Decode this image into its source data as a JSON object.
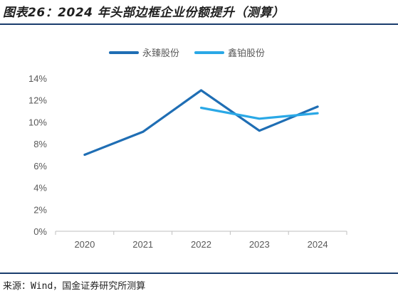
{
  "header": {
    "title": "图表26：2024 年头部边框企业份额提升（测算）"
  },
  "footer": {
    "source": "来源：Wind，国金证券研究所测算"
  },
  "colors": {
    "series_1": "#1f6eb4",
    "series_2": "#2aa8e6",
    "rule": "#1a3d6d"
  },
  "chart_data": {
    "type": "line",
    "title": "",
    "xlabel": "",
    "ylabel": "",
    "categories": [
      "2020",
      "2021",
      "2022",
      "2023",
      "2024"
    ],
    "ylim": [
      0,
      14
    ],
    "yticks": [
      0,
      2,
      4,
      6,
      8,
      10,
      12,
      14
    ],
    "ytick_labels": [
      "0%",
      "2%",
      "4%",
      "6%",
      "8%",
      "10%",
      "12%",
      "14%"
    ],
    "y_unit": "%",
    "grid": false,
    "legend_position": "top-center",
    "series": [
      {
        "name": "永臻股份",
        "values": [
          7.0,
          9.1,
          12.9,
          9.2,
          11.4
        ]
      },
      {
        "name": "鑫铂股份",
        "values": [
          null,
          null,
          11.3,
          10.3,
          10.8
        ]
      }
    ]
  }
}
